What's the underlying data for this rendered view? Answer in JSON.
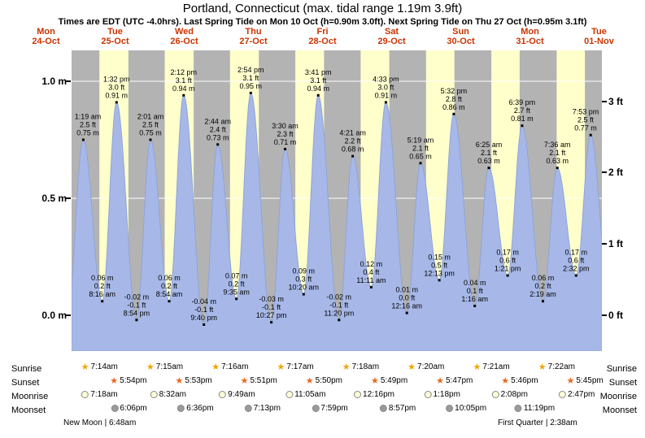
{
  "header": {
    "title": "Portland, Connecticut (max. tidal range 1.19m 3.9ft)",
    "subtitle": "Times are EDT (UTC -4.0hrs). Last Spring Tide on Mon 10 Oct (h=0.90m 3.0ft). Next Spring Tide on Thu 27 Oct (h=0.95m 3.1ft)"
  },
  "days": [
    {
      "name": "Mon",
      "date": "24-Oct"
    },
    {
      "name": "Tue",
      "date": "25-Oct"
    },
    {
      "name": "Wed",
      "date": "26-Oct"
    },
    {
      "name": "Thu",
      "date": "27-Oct"
    },
    {
      "name": "Fri",
      "date": "28-Oct"
    },
    {
      "name": "Sat",
      "date": "29-Oct"
    },
    {
      "name": "Sun",
      "date": "30-Oct"
    },
    {
      "name": "Mon",
      "date": "31-Oct"
    },
    {
      "name": "Tue",
      "date": "01-Nov"
    }
  ],
  "axes": {
    "left": [
      {
        "label": "1.0 m",
        "m": 1.0
      },
      {
        "label": "0.5 m",
        "m": 0.5
      },
      {
        "label": "0.0 m",
        "m": 0.0
      }
    ],
    "right": [
      {
        "label": "3 ft",
        "ft": 3
      },
      {
        "label": "2 ft",
        "ft": 2
      },
      {
        "label": "1 ft",
        "ft": 1
      },
      {
        "label": "0 ft",
        "ft": 0
      }
    ]
  },
  "chart_data": {
    "type": "area",
    "title": "Portland, Connecticut tide heights",
    "x_start": "Mon 24-Oct 00:00",
    "x_end": "Tue 01-Nov 00:00",
    "ylim_m": [
      -0.15,
      1.13
    ],
    "yticks_m": [
      0.0,
      0.5,
      1.0
    ],
    "yticks_ft": [
      0,
      1,
      2,
      3
    ],
    "events": [
      {
        "day": 0,
        "time": "1:19 am",
        "type": "high",
        "m": 0.75,
        "ft": 2.5
      },
      {
        "day": 0,
        "time": "8:16 am",
        "type": "low",
        "m": 0.06,
        "ft": 0.2
      },
      {
        "day": 0,
        "time": "1:32 pm",
        "type": "high",
        "m": 0.91,
        "ft": 3.0
      },
      {
        "day": 0,
        "time": "8:54 pm",
        "type": "low",
        "m": -0.02,
        "ft": -0.1
      },
      {
        "day": 1,
        "time": "2:01 am",
        "type": "high",
        "m": 0.75,
        "ft": 2.5
      },
      {
        "day": 1,
        "time": "8:54 am",
        "type": "low",
        "m": 0.06,
        "ft": 0.2
      },
      {
        "day": 1,
        "time": "2:12 pm",
        "type": "high",
        "m": 0.94,
        "ft": 3.1
      },
      {
        "day": 1,
        "time": "9:40 pm",
        "type": "low",
        "m": -0.04,
        "ft": -0.1
      },
      {
        "day": 2,
        "time": "2:44 am",
        "type": "high",
        "m": 0.73,
        "ft": 2.4
      },
      {
        "day": 2,
        "time": "9:35 am",
        "type": "low",
        "m": 0.07,
        "ft": 0.2
      },
      {
        "day": 2,
        "time": "2:54 pm",
        "type": "high",
        "m": 0.95,
        "ft": 3.1
      },
      {
        "day": 2,
        "time": "10:27 pm",
        "type": "low",
        "m": -0.03,
        "ft": -0.1
      },
      {
        "day": 3,
        "time": "3:30 am",
        "type": "high",
        "m": 0.71,
        "ft": 2.3
      },
      {
        "day": 3,
        "time": "10:20 am",
        "type": "low",
        "m": 0.09,
        "ft": 0.3
      },
      {
        "day": 3,
        "time": "3:41 pm",
        "type": "high",
        "m": 0.94,
        "ft": 3.1
      },
      {
        "day": 3,
        "time": "11:20 pm",
        "type": "low",
        "m": -0.02,
        "ft": -0.1
      },
      {
        "day": 4,
        "time": "4:21 am",
        "type": "high",
        "m": 0.68,
        "ft": 2.2
      },
      {
        "day": 4,
        "time": "11:11 am",
        "type": "low",
        "m": 0.12,
        "ft": 0.4
      },
      {
        "day": 4,
        "time": "4:33 pm",
        "type": "high",
        "m": 0.91,
        "ft": 3.0
      },
      {
        "day": 5,
        "time": "12:16 am",
        "type": "low",
        "m": 0.01,
        "ft": 0.0
      },
      {
        "day": 5,
        "time": "5:19 am",
        "type": "high",
        "m": 0.65,
        "ft": 2.1
      },
      {
        "day": 5,
        "time": "12:13 pm",
        "type": "low",
        "m": 0.15,
        "ft": 0.5
      },
      {
        "day": 5,
        "time": "5:32 pm",
        "type": "high",
        "m": 0.86,
        "ft": 2.8
      },
      {
        "day": 6,
        "time": "1:16 am",
        "type": "low",
        "m": 0.04,
        "ft": 0.1
      },
      {
        "day": 6,
        "time": "6:25 am",
        "type": "high",
        "m": 0.63,
        "ft": 2.1
      },
      {
        "day": 6,
        "time": "1:21 pm",
        "type": "low",
        "m": 0.17,
        "ft": 0.6
      },
      {
        "day": 6,
        "time": "6:39 pm",
        "type": "high",
        "m": 0.81,
        "ft": 2.7
      },
      {
        "day": 7,
        "time": "2:19 am",
        "type": "low",
        "m": 0.06,
        "ft": 0.2
      },
      {
        "day": 7,
        "time": "7:36 am",
        "type": "high",
        "m": 0.63,
        "ft": 2.1
      },
      {
        "day": 7,
        "time": "2:32 pm",
        "type": "low",
        "m": 0.17,
        "ft": 0.6
      },
      {
        "day": 7,
        "time": "7:53 pm",
        "type": "high",
        "m": 0.77,
        "ft": 2.5
      }
    ]
  },
  "astro": {
    "row_labels": [
      "Sunrise",
      "Sunset",
      "Moonrise",
      "Moonset"
    ],
    "sunrise": [
      "7:14am",
      "7:15am",
      "7:16am",
      "7:17am",
      "7:18am",
      "7:20am",
      "7:21am",
      "7:22am"
    ],
    "sunset": [
      "5:54pm",
      "5:53pm",
      "5:51pm",
      "5:50pm",
      "5:49pm",
      "5:47pm",
      "5:46pm",
      "5:45pm"
    ],
    "moonrise": [
      "7:18am",
      "8:32am",
      "9:49am",
      "11:05am",
      "12:16pm",
      "1:18pm",
      "2:08pm",
      "2:47pm"
    ],
    "moonset": [
      "6:06pm",
      "6:36pm",
      "7:13pm",
      "7:59pm",
      "8:57pm",
      "10:05pm",
      "11:19pm"
    ],
    "phases": [
      {
        "text": "New Moon | 6:48am"
      },
      {
        "text": "First Quarter | 2:38am"
      }
    ]
  },
  "colors": {
    "day_band": "#ffffcc",
    "night": "#b3b3b3",
    "tide_fill": "#a7b8e8",
    "tide_stroke": "#8ea4d8",
    "day_label": "#cc3300",
    "sunrise_icon": "#f0a500",
    "sunset_icon": "#e8671e",
    "moonrise_icon": "#ffffd8",
    "moonset_icon": "#9a9a9a"
  }
}
